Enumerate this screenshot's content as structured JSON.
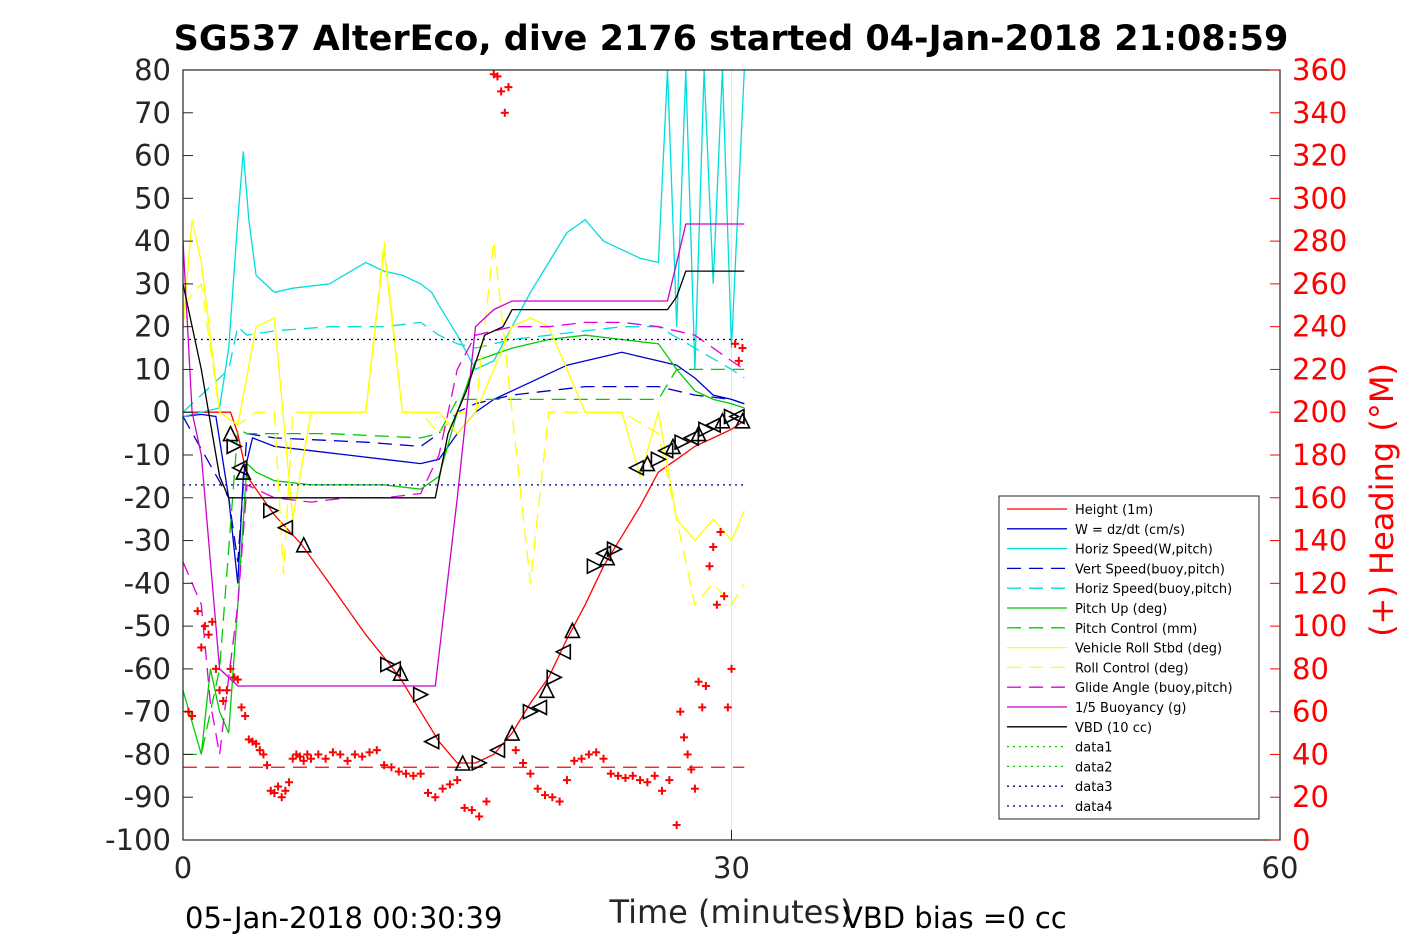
{
  "chart_data": {
    "type": "line",
    "title": "SG537 AlterEco, dive 2176 started 04-Jan-2018 21:08:59",
    "xlabel": "Time (minutes)",
    "ylabel_left": "",
    "ylabel_right": "(+) Heading (°M)",
    "xlim": [
      0,
      60
    ],
    "ylim_left": [
      -100,
      80
    ],
    "ylim_right": [
      0,
      360
    ],
    "xticks": [
      0,
      30,
      60
    ],
    "yticks_left": [
      80,
      70,
      60,
      50,
      40,
      30,
      20,
      10,
      0,
      -10,
      -20,
      -30,
      -40,
      -50,
      -60,
      -70,
      -80,
      -90,
      -100
    ],
    "yticks_right": [
      360,
      340,
      320,
      300,
      280,
      260,
      240,
      220,
      200,
      180,
      160,
      140,
      120,
      100,
      80,
      60,
      40,
      20,
      0
    ],
    "grid": "x-only",
    "legend_position": "right",
    "footer_left": "05-Jan-2018 00:30:39",
    "footer_right": "VBD bias =0 cc",
    "series": [
      {
        "name": "Height (1m)",
        "color": "#ff0000",
        "style": "solid",
        "x": [
          0,
          1,
          2,
          2.6,
          3,
          3.5,
          5,
          6.5,
          8,
          10,
          11.5,
          12,
          13,
          14,
          15,
          16,
          17,
          18,
          19,
          20,
          21,
          22,
          23,
          24,
          25,
          26,
          27,
          28,
          29,
          30,
          30.7
        ],
        "y": [
          0,
          0,
          0,
          0,
          -5,
          -15,
          -24,
          -31,
          -40,
          -52,
          -60,
          -63,
          -70,
          -77,
          -82,
          -82,
          -80,
          -75,
          -68,
          -62,
          -53,
          -45,
          -36,
          -29,
          -22,
          -14,
          -11,
          -8,
          -6,
          -4,
          -2
        ]
      },
      {
        "name": "W = dz/dt (cm/s)",
        "color": "#0000cc",
        "style": "solid",
        "x": [
          0,
          1,
          1.8,
          2.5,
          3,
          3.3,
          3.8,
          5,
          7,
          9,
          11,
          13,
          14,
          15,
          16,
          17,
          18,
          19,
          20,
          21,
          22,
          23,
          24,
          25,
          26,
          27,
          28,
          29,
          30,
          30.7
        ],
        "y": [
          -1,
          -0.5,
          -1,
          -20,
          -40,
          -15,
          -6,
          -8,
          -9,
          -10,
          -11,
          -12,
          -11,
          -5,
          0,
          3,
          5,
          7,
          9,
          11,
          12,
          13,
          14,
          13,
          12,
          11,
          8,
          4,
          3,
          2
        ]
      },
      {
        "name": "Horiz Speed(W,pitch)",
        "color": "#00dddd",
        "style": "solid",
        "x": [
          0,
          1,
          2,
          2.5,
          3,
          3.3,
          3.6,
          4,
          5,
          6,
          8,
          10,
          11,
          12,
          13,
          13.6,
          14,
          15,
          16,
          17,
          18,
          19,
          20,
          21,
          22,
          23,
          24,
          25,
          26,
          26.5,
          27,
          27.5,
          28,
          28.5,
          29,
          29.5,
          30,
          30.7
        ],
        "y": [
          -1,
          0,
          1,
          15,
          45,
          61,
          45,
          32,
          28,
          29,
          30,
          35,
          33,
          32,
          30,
          28,
          25,
          18,
          10,
          12,
          20,
          28,
          35,
          42,
          45,
          40,
          38,
          36,
          35,
          80,
          20,
          80,
          10,
          80,
          30,
          80,
          15,
          80
        ]
      },
      {
        "name": "Vert Speed(buoy,pitch)",
        "color": "#0000cc",
        "style": "dashed",
        "x": [
          0,
          2.5,
          3,
          3.5,
          5,
          10,
          13,
          14,
          15,
          16,
          18,
          20,
          22,
          24,
          26,
          28,
          30,
          30.7
        ],
        "y": [
          -1,
          -20,
          -35,
          -5,
          -6,
          -7,
          -8,
          -5,
          0,
          2,
          4,
          5,
          6,
          6,
          6,
          4,
          3,
          2
        ]
      },
      {
        "name": "Horiz Speed(buoy,pitch)",
        "color": "#00dddd",
        "style": "dashed",
        "x": [
          0,
          2.5,
          3,
          3.5,
          5,
          8,
          11,
          13,
          14,
          15,
          16,
          18,
          20,
          22,
          24,
          26,
          28,
          30,
          30.7
        ],
        "y": [
          0,
          10,
          20,
          18,
          19,
          20,
          20,
          21,
          18,
          16,
          15,
          17,
          18,
          19,
          20,
          20,
          15,
          10,
          8
        ]
      },
      {
        "name": "Pitch Up (deg)",
        "color": "#00cc00",
        "style": "solid",
        "x": [
          0,
          1,
          1.5,
          2,
          2.5,
          3,
          3.5,
          4,
          5,
          7,
          9,
          11,
          13,
          14,
          15,
          16,
          18,
          20,
          22,
          24,
          26,
          27,
          28,
          29,
          30,
          30.7
        ],
        "y": [
          -65,
          -80,
          -60,
          -70,
          -75,
          -45,
          -12,
          -14,
          -16,
          -17,
          -17,
          -17,
          -18,
          -15,
          0,
          12,
          15,
          17,
          18,
          17,
          16,
          10,
          5,
          3,
          2,
          1
        ]
      },
      {
        "name": "Pitch Control (mm)",
        "color": "#00cc00",
        "style": "dashed",
        "x": [
          0,
          1,
          2,
          3,
          3.5,
          8,
          13,
          14,
          15,
          16,
          20,
          24,
          26,
          27,
          30.7
        ],
        "y": [
          -80,
          -80,
          -60,
          -4,
          -5,
          -5,
          -6,
          -5,
          3,
          3,
          3,
          3,
          3,
          10,
          10
        ]
      },
      {
        "name": "Vehicle Roll Stbd (deg)",
        "color": "#ffff00",
        "style": "solid",
        "x": [
          0,
          0.5,
          1,
          2,
          3,
          4,
          5,
          6,
          7,
          10,
          11,
          12,
          13,
          14,
          15,
          16,
          17,
          18,
          19,
          20,
          21,
          22,
          23,
          24,
          25,
          26,
          27,
          28,
          29,
          30,
          30.7
        ],
        "y": [
          20,
          45,
          35,
          0,
          -3,
          20,
          22,
          -25,
          0,
          0,
          38,
          0,
          0,
          0,
          -5,
          0,
          10,
          20,
          22,
          20,
          10,
          0,
          0,
          0,
          -15,
          0,
          -25,
          -30,
          -25,
          -30,
          -23
        ]
      },
      {
        "name": "Roll Control (deg)",
        "color": "#ffff00",
        "style": "dashed",
        "x": [
          0,
          1,
          2,
          3,
          4,
          5,
          5.5,
          6,
          7,
          10,
          11,
          12,
          13,
          14,
          15,
          16,
          17,
          18,
          19,
          20,
          21,
          22,
          24,
          26,
          28,
          29,
          30,
          30.7
        ],
        "y": [
          25,
          30,
          0,
          -3,
          0,
          0,
          -38,
          0,
          0,
          0,
          40,
          0,
          0,
          -5,
          0,
          0,
          40,
          0,
          -40,
          0,
          0,
          0,
          0,
          -5,
          -45,
          -40,
          -45,
          -40
        ]
      },
      {
        "name": "Glide Angle (buoy,pitch)",
        "color": "#dd00dd",
        "style": "dashed",
        "x": [
          0,
          1,
          1.5,
          2,
          2.5,
          3,
          3.5,
          5,
          7,
          9,
          11,
          13,
          14,
          15,
          16,
          18,
          20,
          22,
          24,
          26,
          28,
          30,
          30.7
        ],
        "y": [
          -35,
          -45,
          -68,
          -80,
          -62,
          -45,
          -17,
          -20,
          -21,
          -20,
          -20,
          -19,
          -10,
          10,
          18,
          20,
          20,
          21,
          21,
          20,
          18,
          12,
          10
        ]
      },
      {
        "name": "1/5 Buoyancy (g)",
        "color": "#cc00cc",
        "style": "solid",
        "x": [
          0,
          0.5,
          1,
          2,
          3,
          3.5,
          13.8,
          15,
          16,
          17,
          18,
          26.5,
          27,
          27.5,
          28.5,
          30.7
        ],
        "y": [
          40,
          0,
          -10,
          -60,
          -64,
          -64,
          -64,
          -20,
          20,
          24,
          26,
          26,
          35,
          44,
          44,
          44
        ]
      },
      {
        "name": "VBD (10 cc)",
        "color": "#000000",
        "style": "solid",
        "x": [
          0,
          1,
          2,
          2.5,
          3,
          13.8,
          14.5,
          15.5,
          16.5,
          17.5,
          18,
          19,
          26.5,
          27,
          27.5,
          28.5,
          30.7
        ],
        "y": [
          30,
          10,
          -15,
          -20,
          -20,
          -20,
          -5,
          5,
          18,
          20,
          24,
          24,
          24,
          27,
          33,
          33,
          33
        ]
      },
      {
        "name": "data1",
        "color": "#00cc00",
        "style": "dotted",
        "x": [],
        "y": []
      },
      {
        "name": "data2",
        "color": "#00cc00",
        "style": "dotted",
        "x": [],
        "y": []
      },
      {
        "name": "data3",
        "color": "#000080",
        "style": "dotted",
        "x": [
          0,
          30.7
        ],
        "y": [
          17,
          17
        ]
      },
      {
        "name": "data4",
        "color": "#000080",
        "style": "dotted",
        "x": [
          0,
          30.7
        ],
        "y": [
          -17,
          -17
        ]
      }
    ],
    "reference_lines": [
      {
        "color": "#ff0000",
        "style": "dashed",
        "y": -83,
        "x": [
          0,
          30.7
        ]
      }
    ],
    "heading_points": {
      "color": "#ff0000",
      "marker": "+",
      "x": [
        0.3,
        0.5,
        0.8,
        1.0,
        1.2,
        1.4,
        1.6,
        1.8,
        2.0,
        2.2,
        2.4,
        2.6,
        2.8,
        3.0,
        3.2,
        3.4,
        3.6,
        3.8,
        4.0,
        4.2,
        4.4,
        4.6,
        4.8,
        5.0,
        5.2,
        5.4,
        5.6,
        5.8,
        6.0,
        6.2,
        6.4,
        6.6,
        6.8,
        7.0,
        7.4,
        7.8,
        8.2,
        8.6,
        9.0,
        9.4,
        9.8,
        10.2,
        10.6,
        11.0,
        11.4,
        11.8,
        12.2,
        12.6,
        13.0,
        13.4,
        13.8,
        14.2,
        14.6,
        15.0,
        15.4,
        15.8,
        16.2,
        16.6,
        17.0,
        17.2,
        17.4,
        17.6,
        17.8,
        18.2,
        18.6,
        19.0,
        19.4,
        19.8,
        20.2,
        20.6,
        21.0,
        21.4,
        21.8,
        22.2,
        22.6,
        23.0,
        23.4,
        23.8,
        24.2,
        24.6,
        25.0,
        25.4,
        25.8,
        26.2,
        26.6,
        27.0,
        27.2,
        27.4,
        27.6,
        27.8,
        28.0,
        28.2,
        28.4,
        28.6,
        28.8,
        29.0,
        29.2,
        29.4,
        29.6,
        29.8,
        30.0,
        30.2,
        30.4,
        30.6
      ],
      "y": [
        60,
        58,
        107,
        90,
        100,
        96,
        102,
        80,
        70,
        65,
        70,
        80,
        76,
        75,
        62,
        58,
        47,
        46,
        45,
        42,
        40,
        35,
        23,
        22,
        25,
        20,
        23,
        27,
        38,
        40,
        39,
        37,
        40,
        38,
        40,
        38,
        41,
        40,
        37,
        40,
        39,
        41,
        42,
        35,
        34,
        32,
        31,
        30,
        31,
        22,
        20,
        24,
        26,
        28,
        15,
        14,
        11,
        18,
        358,
        357,
        350,
        340,
        352,
        42,
        36,
        31,
        24,
        21,
        20,
        18,
        28,
        37,
        38,
        40,
        41,
        38,
        31,
        30,
        29,
        30,
        28,
        27,
        30,
        23,
        28,
        7,
        60,
        48,
        40,
        33,
        24,
        74,
        62,
        72,
        128,
        137,
        110,
        144,
        114,
        62,
        80,
        232,
        224,
        230
      ]
    },
    "triangle_markers": {
      "color": "#000000",
      "x": [
        2.6,
        2.8,
        3.1,
        3.3,
        4.8,
        5.6,
        6.6,
        11.2,
        11.5,
        11.9,
        13.0,
        13.6,
        15.3,
        16.2,
        17.2,
        18.0,
        19.0,
        19.5,
        19.9,
        20.3,
        20.8,
        21.3,
        22.5,
        23.0,
        23.2,
        23.6,
        24.8,
        25.4,
        26.0,
        26.4,
        26.8,
        27.3,
        27.8,
        28.2,
        28.6,
        29.0,
        29.5,
        30.0,
        30.3,
        30.6
      ],
      "y": [
        -5,
        -8,
        -13,
        -14,
        -23,
        -27,
        -31,
        -59,
        -60,
        -61,
        -66,
        -77,
        -82,
        -82,
        -79,
        -75,
        -70,
        -69,
        -65,
        -62,
        -56,
        -51,
        -36,
        -33,
        -34,
        -32,
        -13,
        -12,
        -11,
        -9,
        -8,
        -7,
        -6,
        -5,
        -4,
        -3,
        -2,
        -1,
        -1,
        -2
      ]
    }
  }
}
